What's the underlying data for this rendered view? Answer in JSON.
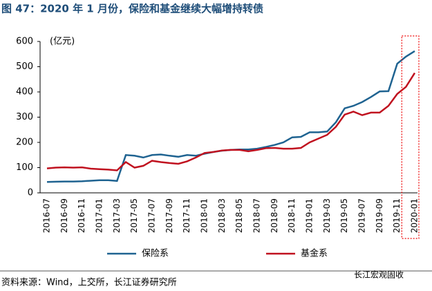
{
  "title": "图 47：2020 年 1 月份，保险和基金继续大幅增持转债",
  "chart_data": {
    "type": "line",
    "unit_label": "(亿元)",
    "categories": [
      "2016-07",
      null,
      "2016-09",
      null,
      "2016-11",
      null,
      "2017-01",
      null,
      "2017-03",
      null,
      "2017-05",
      null,
      "2017-07",
      null,
      "2017-09",
      null,
      "2017-11",
      null,
      "2018-01",
      null,
      "2018-03",
      null,
      "2018-05",
      null,
      "2018-07",
      null,
      "2018-09",
      null,
      "2018-11",
      null,
      "2019-01",
      null,
      "2019-03",
      null,
      "2019-05",
      null,
      "2019-07",
      null,
      "2019-09",
      null,
      "2019-11",
      null,
      "2020-01"
    ],
    "series": [
      {
        "name": "保险系",
        "color": "#1f6391",
        "values": [
          43,
          44,
          45,
          45,
          46,
          48,
          50,
          50,
          47,
          150,
          147,
          140,
          150,
          152,
          147,
          143,
          150,
          147,
          155,
          162,
          167,
          170,
          172,
          172,
          175,
          182,
          190,
          200,
          220,
          222,
          240,
          240,
          243,
          280,
          335,
          345,
          360,
          380,
          402,
          403,
          512,
          540,
          562
        ]
      },
      {
        "name": "基金系",
        "color": "#c0111f",
        "values": [
          97,
          100,
          101,
          100,
          101,
          96,
          94,
          92,
          89,
          122,
          100,
          107,
          127,
          122,
          118,
          115,
          125,
          140,
          158,
          162,
          168,
          170,
          170,
          165,
          170,
          177,
          178,
          175,
          175,
          178,
          200,
          215,
          230,
          262,
          310,
          322,
          308,
          318,
          318,
          345,
          392,
          420,
          475
        ]
      }
    ],
    "ylim": [
      0,
      600
    ],
    "yticks": [
      0,
      100,
      200,
      300,
      400,
      500,
      600
    ]
  },
  "source": "资料来源：Wind，上交所，长江证券研究所",
  "watermark": "长江宏观固收"
}
